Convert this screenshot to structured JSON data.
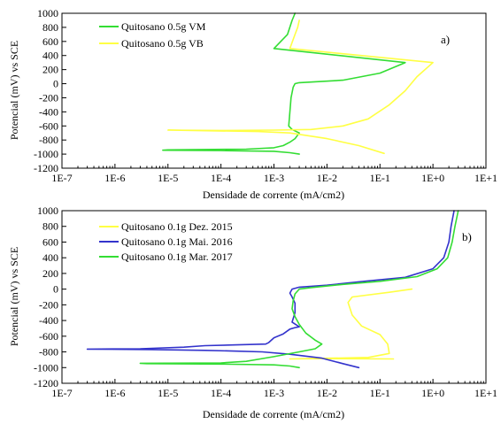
{
  "chart_data": [
    {
      "type": "line",
      "panel_label": "a)",
      "xlabel": "Densidade de corrente (mA/cm2)",
      "ylabel": "Potencial (mV) vs SCE",
      "xscale": "log",
      "xlim_log10": [
        -7,
        1
      ],
      "x_ticks": [
        "1E-7",
        "1E-6",
        "1E-5",
        "1E-4",
        "1E-3",
        "1E-2",
        "1E-1",
        "1E+0",
        "1E+1"
      ],
      "ylim": [
        -1200,
        1000
      ],
      "y_ticks": [
        "1000",
        "800",
        "600",
        "400",
        "200",
        "0",
        "-200",
        "-400",
        "-600",
        "-800",
        "-1000",
        "-1200"
      ],
      "legend_position": "top-left",
      "series": [
        {
          "name": "Quitosano 0.5g VM",
          "color": "#33dd33",
          "points": [
            [
              0.0025,
              1000
            ],
            [
              0.0022,
              900
            ],
            [
              0.0018,
              700
            ],
            [
              0.001,
              500
            ],
            [
              0.3,
              300
            ],
            [
              0.1,
              150
            ],
            [
              0.02,
              50
            ],
            [
              0.003,
              15
            ],
            [
              0.0025,
              0
            ],
            [
              0.0023,
              -50
            ],
            [
              0.0021,
              -200
            ],
            [
              0.002,
              -400
            ],
            [
              0.0019,
              -600
            ],
            [
              0.0022,
              -650
            ],
            [
              0.003,
              -700
            ],
            [
              0.0025,
              -780
            ],
            [
              0.002,
              -830
            ],
            [
              0.0015,
              -880
            ],
            [
              0.001,
              -910
            ],
            [
              0.0003,
              -930
            ],
            [
              1e-05,
              -940
            ],
            [
              8e-06,
              -945
            ],
            [
              0.0001,
              -950
            ],
            [
              0.001,
              -960
            ],
            [
              0.002,
              -980
            ],
            [
              0.003,
              -1000
            ]
          ]
        },
        {
          "name": "Quitosano 0.5g VB",
          "color": "#ffff44",
          "points": [
            [
              0.003,
              900
            ],
            [
              0.0028,
              800
            ],
            [
              0.0025,
              700
            ],
            [
              0.002,
              500
            ],
            [
              1.0,
              300
            ],
            [
              0.5,
              100
            ],
            [
              0.3,
              -100
            ],
            [
              0.15,
              -300
            ],
            [
              0.06,
              -500
            ],
            [
              0.02,
              -600
            ],
            [
              0.005,
              -650
            ],
            [
              0.001,
              -660
            ],
            [
              0.0001,
              -665
            ],
            [
              1e-05,
              -660
            ],
            [
              0.0005,
              -680
            ],
            [
              0.002,
              -700
            ],
            [
              0.01,
              -780
            ],
            [
              0.04,
              -880
            ],
            [
              0.12,
              -990
            ]
          ]
        }
      ]
    },
    {
      "type": "line",
      "panel_label": "b)",
      "xlabel": "Densidade de corrente (mA/cm2)",
      "ylabel": "Potencial (mV) vs SCE",
      "xscale": "log",
      "xlim_log10": [
        -7,
        1
      ],
      "x_ticks": [
        "1E-7",
        "1E-6",
        "1E-5",
        "1E-4",
        "1E-3",
        "1E-2",
        "1E-1",
        "1E+0",
        "1E+1"
      ],
      "ylim": [
        -1200,
        1000
      ],
      "y_ticks": [
        "1000",
        "800",
        "600",
        "400",
        "200",
        "0",
        "-200",
        "-400",
        "-600",
        "-800",
        "-1000",
        "-1200"
      ],
      "legend_position": "top-left",
      "series": [
        {
          "name": "Quitosano 0.1g Dez. 2015",
          "color": "#ffff44",
          "points": [
            [
              0.4,
              0
            ],
            [
              0.15,
              -40
            ],
            [
              0.03,
              -100
            ],
            [
              0.025,
              -170
            ],
            [
              0.03,
              -330
            ],
            [
              0.045,
              -470
            ],
            [
              0.1,
              -580
            ],
            [
              0.14,
              -700
            ],
            [
              0.15,
              -820
            ],
            [
              0.06,
              -870
            ],
            [
              0.005,
              -885
            ],
            [
              0.002,
              -890
            ],
            [
              0.01,
              -885
            ],
            [
              0.18,
              -890
            ]
          ]
        },
        {
          "name": "Quitosano 0.1g Mai. 2016",
          "color": "#3333cc",
          "points": [
            [
              2.5,
              1000
            ],
            [
              2.2,
              800
            ],
            [
              2.0,
              600
            ],
            [
              1.6,
              400
            ],
            [
              1.0,
              260
            ],
            [
              0.3,
              150
            ],
            [
              0.05,
              100
            ],
            [
              0.01,
              50
            ],
            [
              0.003,
              25
            ],
            [
              0.0022,
              0
            ],
            [
              0.002,
              -50
            ],
            [
              0.0022,
              -100
            ],
            [
              0.0025,
              -180
            ],
            [
              0.0025,
              -300
            ],
            [
              0.0022,
              -420
            ],
            [
              0.003,
              -480
            ],
            [
              0.0025,
              -490
            ],
            [
              0.002,
              -510
            ],
            [
              0.0015,
              -570
            ],
            [
              0.001,
              -620
            ],
            [
              0.0008,
              -680
            ],
            [
              0.0007,
              -700
            ],
            [
              0.0002,
              -710
            ],
            [
              5e-05,
              -720
            ],
            [
              2e-05,
              -740
            ],
            [
              3e-06,
              -760
            ],
            [
              3e-07,
              -765
            ],
            [
              5e-06,
              -770
            ],
            [
              5e-05,
              -780
            ],
            [
              0.0002,
              -790
            ],
            [
              0.0006,
              -800
            ],
            [
              0.002,
              -830
            ],
            [
              0.008,
              -880
            ],
            [
              0.02,
              -950
            ],
            [
              0.04,
              -1000
            ]
          ]
        },
        {
          "name": "Quitosano 0.1g Mar. 2017",
          "color": "#33dd33",
          "points": [
            [
              3.0,
              1000
            ],
            [
              2.6,
              800
            ],
            [
              2.3,
              600
            ],
            [
              1.9,
              400
            ],
            [
              1.2,
              260
            ],
            [
              0.5,
              160
            ],
            [
              0.1,
              100
            ],
            [
              0.02,
              60
            ],
            [
              0.005,
              20
            ],
            [
              0.003,
              0
            ],
            [
              0.0025,
              -60
            ],
            [
              0.0023,
              -150
            ],
            [
              0.0022,
              -250
            ],
            [
              0.0025,
              -350
            ],
            [
              0.003,
              -450
            ],
            [
              0.004,
              -560
            ],
            [
              0.006,
              -650
            ],
            [
              0.008,
              -700
            ],
            [
              0.006,
              -760
            ],
            [
              0.003,
              -800
            ],
            [
              0.001,
              -860
            ],
            [
              0.0003,
              -920
            ],
            [
              0.0001,
              -940
            ],
            [
              3e-06,
              -945
            ],
            [
              4e-06,
              -950
            ],
            [
              0.0001,
              -955
            ],
            [
              0.001,
              -965
            ],
            [
              0.002,
              -980
            ],
            [
              0.003,
              -1000
            ]
          ]
        }
      ]
    }
  ]
}
